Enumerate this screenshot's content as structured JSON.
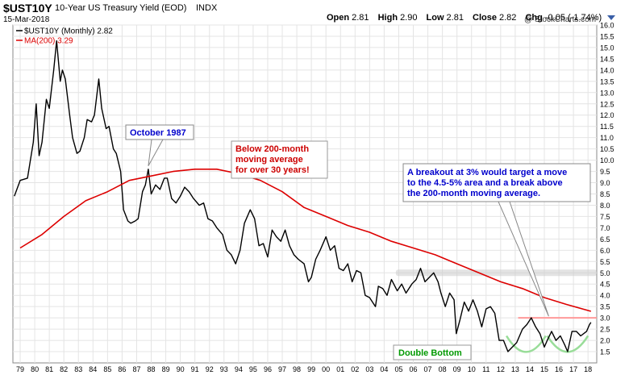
{
  "header": {
    "symbol": "$UST10Y",
    "description": "10-Year US Treasury Yield (EOD)",
    "exchange": "INDX",
    "date": "15-Mar-2018",
    "watermark": "@ StockCharts.com",
    "open_label": "Open",
    "open": "2.81",
    "high_label": "High",
    "high": "2.90",
    "low_label": "Low",
    "low": "2.81",
    "close_label": "Close",
    "close": "2.82",
    "chg_label": "Chg",
    "chg": "-0.05 (-1.74%)"
  },
  "chart_data": {
    "type": "line",
    "ylim": [
      1.0,
      16.0
    ],
    "y_ticks": [
      "1.5",
      "2.0",
      "2.5",
      "3.0",
      "3.5",
      "4.0",
      "4.5",
      "5.0",
      "5.5",
      "6.0",
      "6.5",
      "7.0",
      "7.5",
      "8.0",
      "8.5",
      "9.0",
      "9.5",
      "10.0",
      "10.5",
      "11.0",
      "11.5",
      "12.0",
      "12.5",
      "13.0",
      "13.5",
      "14.0",
      "14.5",
      "15.0",
      "15.5",
      "16.0"
    ],
    "x_ticks": [
      "79",
      "80",
      "81",
      "82",
      "83",
      "84",
      "85",
      "86",
      "87",
      "88",
      "89",
      "90",
      "91",
      "92",
      "93",
      "94",
      "95",
      "96",
      "97",
      "98",
      "99",
      "00",
      "01",
      "02",
      "03",
      "04",
      "05",
      "06",
      "07",
      "08",
      "09",
      "10",
      "11",
      "12",
      "13",
      "14",
      "15",
      "16",
      "17",
      "18"
    ],
    "x_range": [
      1978.5,
      2018.6
    ],
    "legend": [
      {
        "name": "$UST10Y (Monthly) 2.82",
        "color": "#000000"
      },
      {
        "name": "MA(200) 3.29",
        "color": "#dd0000"
      }
    ],
    "series": [
      {
        "name": "$UST10Y (Monthly) 2.82",
        "color": "#000000",
        "x": [
          1978.6,
          1979.0,
          1979.5,
          1979.9,
          1980.1,
          1980.3,
          1980.5,
          1980.8,
          1981.0,
          1981.3,
          1981.5,
          1981.75,
          1981.9,
          1982.1,
          1982.4,
          1982.6,
          1982.9,
          1983.1,
          1983.4,
          1983.6,
          1983.9,
          1984.1,
          1984.4,
          1984.6,
          1984.9,
          1985.1,
          1985.4,
          1985.6,
          1985.9,
          1986.1,
          1986.4,
          1986.6,
          1986.9,
          1987.1,
          1987.4,
          1987.6,
          1987.8,
          1988.0,
          1988.3,
          1988.6,
          1988.9,
          1989.1,
          1989.4,
          1989.7,
          1990.0,
          1990.3,
          1990.6,
          1990.9,
          1991.3,
          1991.6,
          1991.9,
          1992.2,
          1992.5,
          1992.9,
          1993.2,
          1993.5,
          1993.8,
          1994.1,
          1994.4,
          1994.8,
          1995.1,
          1995.4,
          1995.7,
          1996.0,
          1996.3,
          1996.6,
          1996.9,
          1997.2,
          1997.5,
          1997.8,
          1998.1,
          1998.5,
          1998.8,
          1999.0,
          1999.3,
          1999.6,
          2000.0,
          2000.3,
          2000.6,
          2000.9,
          2001.2,
          2001.5,
          2001.8,
          2002.1,
          2002.4,
          2002.7,
          2003.0,
          2003.4,
          2003.6,
          2003.9,
          2004.2,
          2004.5,
          2004.9,
          2005.2,
          2005.5,
          2005.9,
          2006.2,
          2006.5,
          2006.8,
          2007.1,
          2007.4,
          2007.7,
          2007.9,
          2008.2,
          2008.5,
          2008.8,
          2008.95,
          2009.2,
          2009.5,
          2009.8,
          2010.1,
          2010.4,
          2010.7,
          2011.0,
          2011.3,
          2011.6,
          2011.9,
          2012.2,
          2012.5,
          2012.8,
          2013.1,
          2013.5,
          2013.8,
          2014.1,
          2014.4,
          2014.7,
          2015.0,
          2015.2,
          2015.5,
          2015.8,
          2016.1,
          2016.4,
          2016.6,
          2016.9,
          2017.2,
          2017.5,
          2017.9,
          2018.1,
          2018.2
        ],
        "y": [
          8.4,
          9.1,
          9.2,
          10.8,
          12.5,
          10.2,
          10.8,
          12.7,
          12.3,
          14.0,
          15.3,
          13.5,
          14.0,
          13.6,
          12.0,
          11.0,
          10.3,
          10.4,
          11.0,
          11.8,
          11.7,
          12.0,
          13.6,
          12.3,
          11.4,
          11.5,
          10.5,
          10.3,
          9.5,
          7.8,
          7.3,
          7.2,
          7.3,
          7.4,
          8.6,
          8.9,
          9.6,
          8.5,
          8.9,
          8.7,
          9.2,
          9.2,
          8.3,
          8.1,
          8.4,
          8.8,
          8.6,
          8.3,
          8.0,
          8.1,
          7.4,
          7.3,
          7.0,
          6.7,
          6.0,
          5.8,
          5.4,
          6.0,
          7.2,
          7.8,
          7.4,
          6.2,
          6.3,
          5.7,
          6.9,
          6.6,
          6.4,
          6.9,
          6.2,
          5.8,
          5.6,
          5.4,
          4.6,
          4.8,
          5.6,
          6.0,
          6.6,
          6.0,
          6.2,
          5.2,
          5.1,
          5.4,
          4.6,
          5.1,
          5.0,
          4.0,
          3.9,
          3.5,
          4.4,
          4.3,
          4.0,
          4.7,
          4.2,
          4.5,
          4.1,
          4.5,
          4.7,
          5.2,
          4.6,
          4.8,
          5.0,
          4.6,
          4.1,
          3.5,
          4.1,
          3.8,
          2.3,
          2.9,
          3.7,
          3.3,
          3.8,
          3.3,
          2.6,
          3.4,
          3.5,
          3.2,
          2.0,
          2.0,
          1.5,
          1.7,
          1.9,
          2.5,
          2.7,
          3.0,
          2.6,
          2.3,
          1.7,
          2.0,
          2.4,
          2.0,
          2.2,
          1.8,
          1.5,
          2.4,
          2.4,
          2.2,
          2.4,
          2.7,
          2.8
        ]
      },
      {
        "name": "MA(200) 3.29",
        "color": "#dd0000",
        "x": [
          1979.0,
          1980.5,
          1982.0,
          1983.5,
          1985.0,
          1986.5,
          1988.0,
          1989.5,
          1991.0,
          1992.5,
          1994.0,
          1995.5,
          1997.0,
          1998.5,
          2000.0,
          2001.5,
          2003.0,
          2004.5,
          2006.0,
          2007.5,
          2009.0,
          2010.5,
          2012.0,
          2013.5,
          2015.0,
          2016.5,
          2018.2
        ],
        "y": [
          6.1,
          6.7,
          7.5,
          8.2,
          8.6,
          9.1,
          9.3,
          9.5,
          9.6,
          9.6,
          9.4,
          9.1,
          8.6,
          7.9,
          7.5,
          7.1,
          6.8,
          6.4,
          6.1,
          5.8,
          5.4,
          5.0,
          4.6,
          4.3,
          3.9,
          3.6,
          3.29
        ]
      }
    ],
    "annotations": [
      {
        "text": "October 1987",
        "color": "#0000cc",
        "points_to": [
          1987.8,
          9.6
        ]
      },
      {
        "text_lines": [
          "Below 200-month",
          "moving average",
          "for over 30 years!"
        ],
        "color": "#cc0000"
      },
      {
        "text_lines": [
          "A breakout at 3% would  target a move",
          "to the 4.5-5% area and a break above",
          "the 200-month moving average."
        ],
        "color": "#0000cc",
        "points_to": [
          2015.3,
          3.0
        ]
      },
      {
        "text": "Double Bottom",
        "color": "#009900"
      }
    ],
    "horizontal_lines": [
      {
        "y": 3.0,
        "color": "#ff9999",
        "x_start": 2013.2
      },
      {
        "y": 5.0,
        "color": "#cccccc",
        "style": "band",
        "x_start": 2004.8
      }
    ]
  }
}
